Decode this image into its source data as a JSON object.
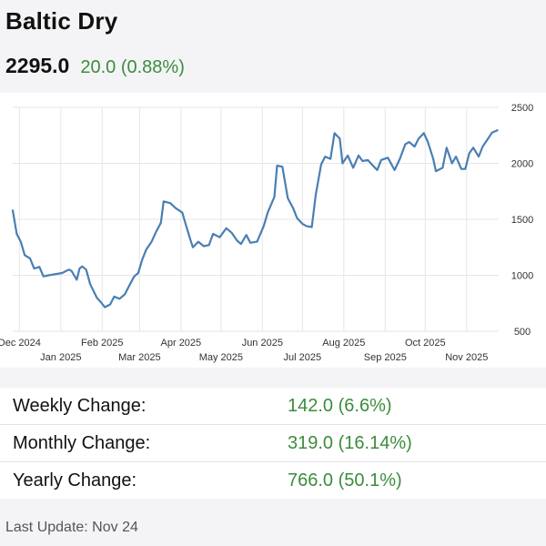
{
  "header": {
    "title": "Baltic Dry",
    "price": "2295.0",
    "change": "20.0 (0.88%)"
  },
  "colors": {
    "positive": "#3c8c3c",
    "line": "#4a7fb3",
    "grid": "#e6e6e6"
  },
  "stats": [
    {
      "label": "Weekly Change:",
      "value": "142.0 (6.6%)"
    },
    {
      "label": "Monthly Change:",
      "value": "319.0 (16.14%)"
    },
    {
      "label": "Yearly Change:",
      "value": "766.0 (50.1%)"
    }
  ],
  "footer": {
    "last_update": "Last Update: Nov 24"
  },
  "chart_data": {
    "type": "line",
    "title": "",
    "xlabel": "",
    "ylabel": "",
    "ylim": [
      500,
      2500
    ],
    "y_ticks": [
      500,
      1000,
      1500,
      2000,
      2500
    ],
    "xlim": [
      "2024-11-26",
      "2025-11-25"
    ],
    "x_ticks_top": [
      {
        "date": "2024-12-01",
        "label": "Dec 2024"
      },
      {
        "date": "2025-02-01",
        "label": "Feb 2025"
      },
      {
        "date": "2025-04-01",
        "label": "Apr 2025"
      },
      {
        "date": "2025-06-01",
        "label": "Jun 2025"
      },
      {
        "date": "2025-08-01",
        "label": "Aug 2025"
      },
      {
        "date": "2025-10-01",
        "label": "Oct 2025"
      }
    ],
    "x_ticks_bottom": [
      {
        "date": "2025-01-01",
        "label": "Jan 2025"
      },
      {
        "date": "2025-03-01",
        "label": "Mar 2025"
      },
      {
        "date": "2025-05-01",
        "label": "May 2025"
      },
      {
        "date": "2025-07-01",
        "label": "Jul 2025"
      },
      {
        "date": "2025-09-01",
        "label": "Sep 2025"
      },
      {
        "date": "2025-11-01",
        "label": "Nov 2025"
      }
    ],
    "grid": true,
    "series": [
      {
        "values": [
          [
            "2024-11-26",
            1580
          ],
          [
            "2024-11-29",
            1370
          ],
          [
            "2024-12-02",
            1300
          ],
          [
            "2024-12-05",
            1180
          ],
          [
            "2024-12-09",
            1150
          ],
          [
            "2024-12-12",
            1060
          ],
          [
            "2024-12-16",
            1075
          ],
          [
            "2024-12-19",
            990
          ],
          [
            "2024-12-23",
            1000
          ],
          [
            "2025-01-02",
            1020
          ],
          [
            "2025-01-07",
            1050
          ],
          [
            "2025-01-09",
            1040
          ],
          [
            "2025-01-13",
            960
          ],
          [
            "2025-01-15",
            1060
          ],
          [
            "2025-01-17",
            1080
          ],
          [
            "2025-01-20",
            1050
          ],
          [
            "2025-01-23",
            920
          ],
          [
            "2025-01-28",
            800
          ],
          [
            "2025-01-31",
            760
          ],
          [
            "2025-02-03",
            715
          ],
          [
            "2025-02-07",
            740
          ],
          [
            "2025-02-10",
            810
          ],
          [
            "2025-02-14",
            790
          ],
          [
            "2025-02-18",
            830
          ],
          [
            "2025-02-21",
            900
          ],
          [
            "2025-02-25",
            990
          ],
          [
            "2025-02-28",
            1020
          ],
          [
            "2025-03-03",
            1140
          ],
          [
            "2025-03-06",
            1230
          ],
          [
            "2025-03-10",
            1300
          ],
          [
            "2025-03-13",
            1380
          ],
          [
            "2025-03-17",
            1470
          ],
          [
            "2025-03-19",
            1660
          ],
          [
            "2025-03-24",
            1645
          ],
          [
            "2025-03-28",
            1600
          ],
          [
            "2025-04-02",
            1560
          ],
          [
            "2025-04-04",
            1480
          ],
          [
            "2025-04-08",
            1320
          ],
          [
            "2025-04-10",
            1250
          ],
          [
            "2025-04-14",
            1300
          ],
          [
            "2025-04-18",
            1260
          ],
          [
            "2025-04-22",
            1270
          ],
          [
            "2025-04-25",
            1370
          ],
          [
            "2025-04-30",
            1340
          ],
          [
            "2025-05-05",
            1420
          ],
          [
            "2025-05-09",
            1380
          ],
          [
            "2025-05-13",
            1310
          ],
          [
            "2025-05-16",
            1280
          ],
          [
            "2025-05-20",
            1360
          ],
          [
            "2025-05-23",
            1290
          ],
          [
            "2025-05-28",
            1300
          ],
          [
            "2025-06-02",
            1440
          ],
          [
            "2025-06-05",
            1560
          ],
          [
            "2025-06-10",
            1700
          ],
          [
            "2025-06-12",
            1980
          ],
          [
            "2025-06-16",
            1970
          ],
          [
            "2025-06-20",
            1690
          ],
          [
            "2025-06-24",
            1600
          ],
          [
            "2025-06-27",
            1510
          ],
          [
            "2025-07-01",
            1460
          ],
          [
            "2025-07-04",
            1440
          ],
          [
            "2025-07-08",
            1430
          ],
          [
            "2025-07-11",
            1720
          ],
          [
            "2025-07-15",
            1990
          ],
          [
            "2025-07-18",
            2060
          ],
          [
            "2025-07-22",
            2040
          ],
          [
            "2025-07-25",
            2270
          ],
          [
            "2025-07-29",
            2220
          ],
          [
            "2025-07-31",
            2000
          ],
          [
            "2025-08-04",
            2070
          ],
          [
            "2025-08-08",
            1960
          ],
          [
            "2025-08-12",
            2070
          ],
          [
            "2025-08-15",
            2020
          ],
          [
            "2025-08-19",
            2030
          ],
          [
            "2025-08-22",
            1990
          ],
          [
            "2025-08-26",
            1940
          ],
          [
            "2025-08-29",
            2030
          ],
          [
            "2025-09-03",
            2050
          ],
          [
            "2025-09-08",
            1940
          ],
          [
            "2025-09-12",
            2040
          ],
          [
            "2025-09-16",
            2170
          ],
          [
            "2025-09-19",
            2190
          ],
          [
            "2025-09-23",
            2150
          ],
          [
            "2025-09-26",
            2220
          ],
          [
            "2025-09-30",
            2270
          ],
          [
            "2025-10-03",
            2190
          ],
          [
            "2025-10-07",
            2040
          ],
          [
            "2025-10-09",
            1930
          ],
          [
            "2025-10-14",
            1960
          ],
          [
            "2025-10-17",
            2140
          ],
          [
            "2025-10-21",
            2000
          ],
          [
            "2025-10-24",
            2060
          ],
          [
            "2025-10-28",
            1950
          ],
          [
            "2025-10-31",
            1950
          ],
          [
            "2025-11-03",
            2090
          ],
          [
            "2025-11-06",
            2140
          ],
          [
            "2025-11-10",
            2060
          ],
          [
            "2025-11-13",
            2150
          ],
          [
            "2025-11-17",
            2220
          ],
          [
            "2025-11-20",
            2275
          ],
          [
            "2025-11-24",
            2295
          ]
        ]
      }
    ]
  }
}
